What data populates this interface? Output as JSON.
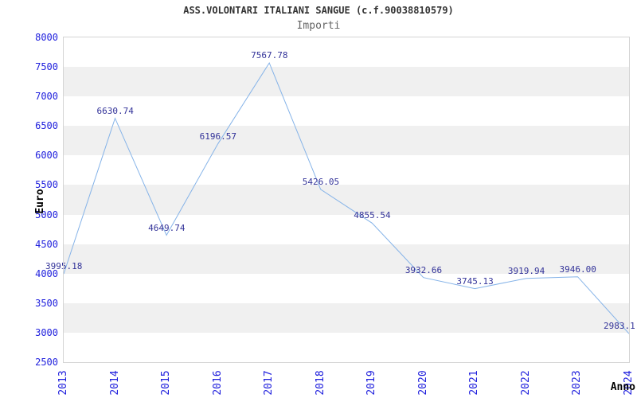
{
  "header": {
    "title": "ASS.VOLONTARI ITALIANI SANGUE (c.f.90038810579)",
    "subtitle": "Importi"
  },
  "chart_data": {
    "type": "line",
    "title": "ASS.VOLONTARI ITALIANI SANGUE (c.f.90038810579)",
    "subtitle": "Importi",
    "xlabel": "Anno",
    "ylabel": "Euro",
    "x": [
      "2013",
      "2014",
      "2015",
      "2016",
      "2017",
      "2018",
      "2019",
      "2020",
      "2021",
      "2022",
      "2023",
      "2024"
    ],
    "values": [
      3995.18,
      6630.74,
      4649.74,
      6196.57,
      7567.78,
      5426.05,
      4855.54,
      3932.66,
      3745.13,
      3919.94,
      3946.0,
      2983.1
    ],
    "point_labels": [
      "3995.18",
      "6630.74",
      "4649.74",
      "6196.57",
      "7567.78",
      "5426.05",
      "4855.54",
      "3932.66",
      "3745.13",
      "3919.94",
      "3946.00",
      "2983.1"
    ],
    "ylim": [
      2500,
      8000
    ],
    "yticks": [
      2500,
      3000,
      3500,
      4000,
      4500,
      5000,
      5500,
      6000,
      6500,
      7000,
      7500,
      8000
    ],
    "grid": "alternating-horizontal-bands",
    "legend": "none",
    "colors": {
      "line": "#85b3e8",
      "axis_tick_label": "#2020dd",
      "point_label": "#333399",
      "band": "#f0f0f0",
      "plot_border": "#d4d4d4",
      "title": "#333333",
      "subtitle": "#666666",
      "axis_title": "#000000",
      "background": "#ffffff"
    }
  }
}
